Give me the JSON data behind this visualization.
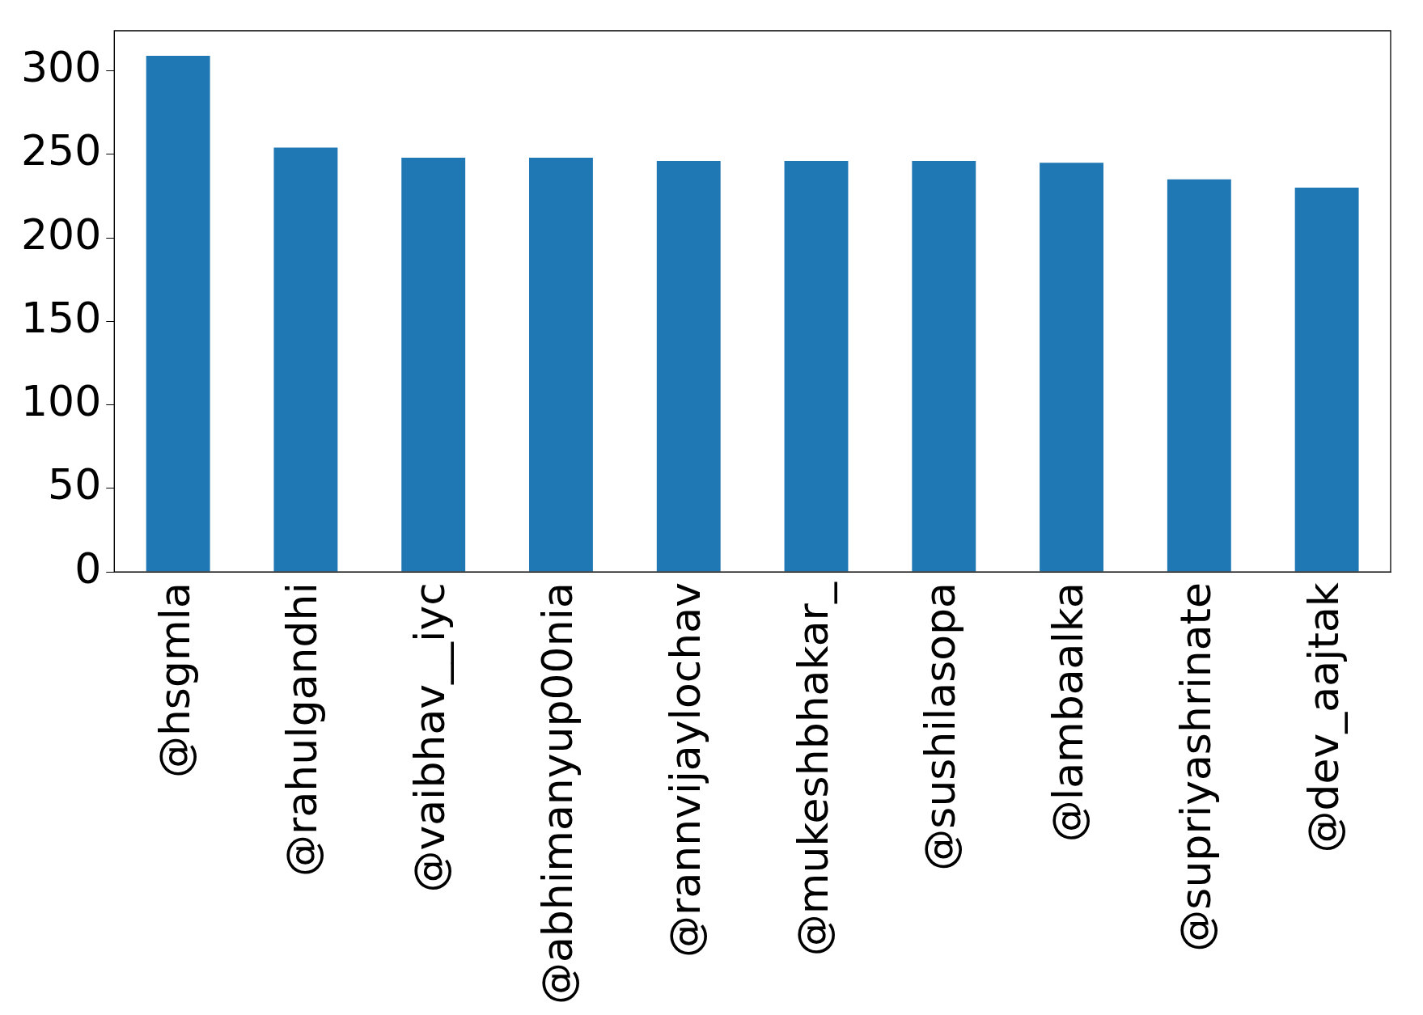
{
  "chart_data": {
    "type": "bar",
    "categories": [
      "@hsgmla",
      "@rahulgandhi",
      "@vaibhav__iyc",
      "@abhimanyup00nia",
      "@rannvijaylochav",
      "@mukeshbhakar_",
      "@sushilasopa",
      "@lambaalka",
      "@supriyashrinate",
      "@dev_aajtak"
    ],
    "values": [
      309,
      254,
      248,
      248,
      246,
      246,
      246,
      245,
      235,
      230
    ],
    "color": "#1f77b4",
    "ylim": [
      0,
      324
    ],
    "yticks": [
      0,
      50,
      100,
      150,
      200,
      250,
      300
    ],
    "grid": false,
    "legend": false
  }
}
